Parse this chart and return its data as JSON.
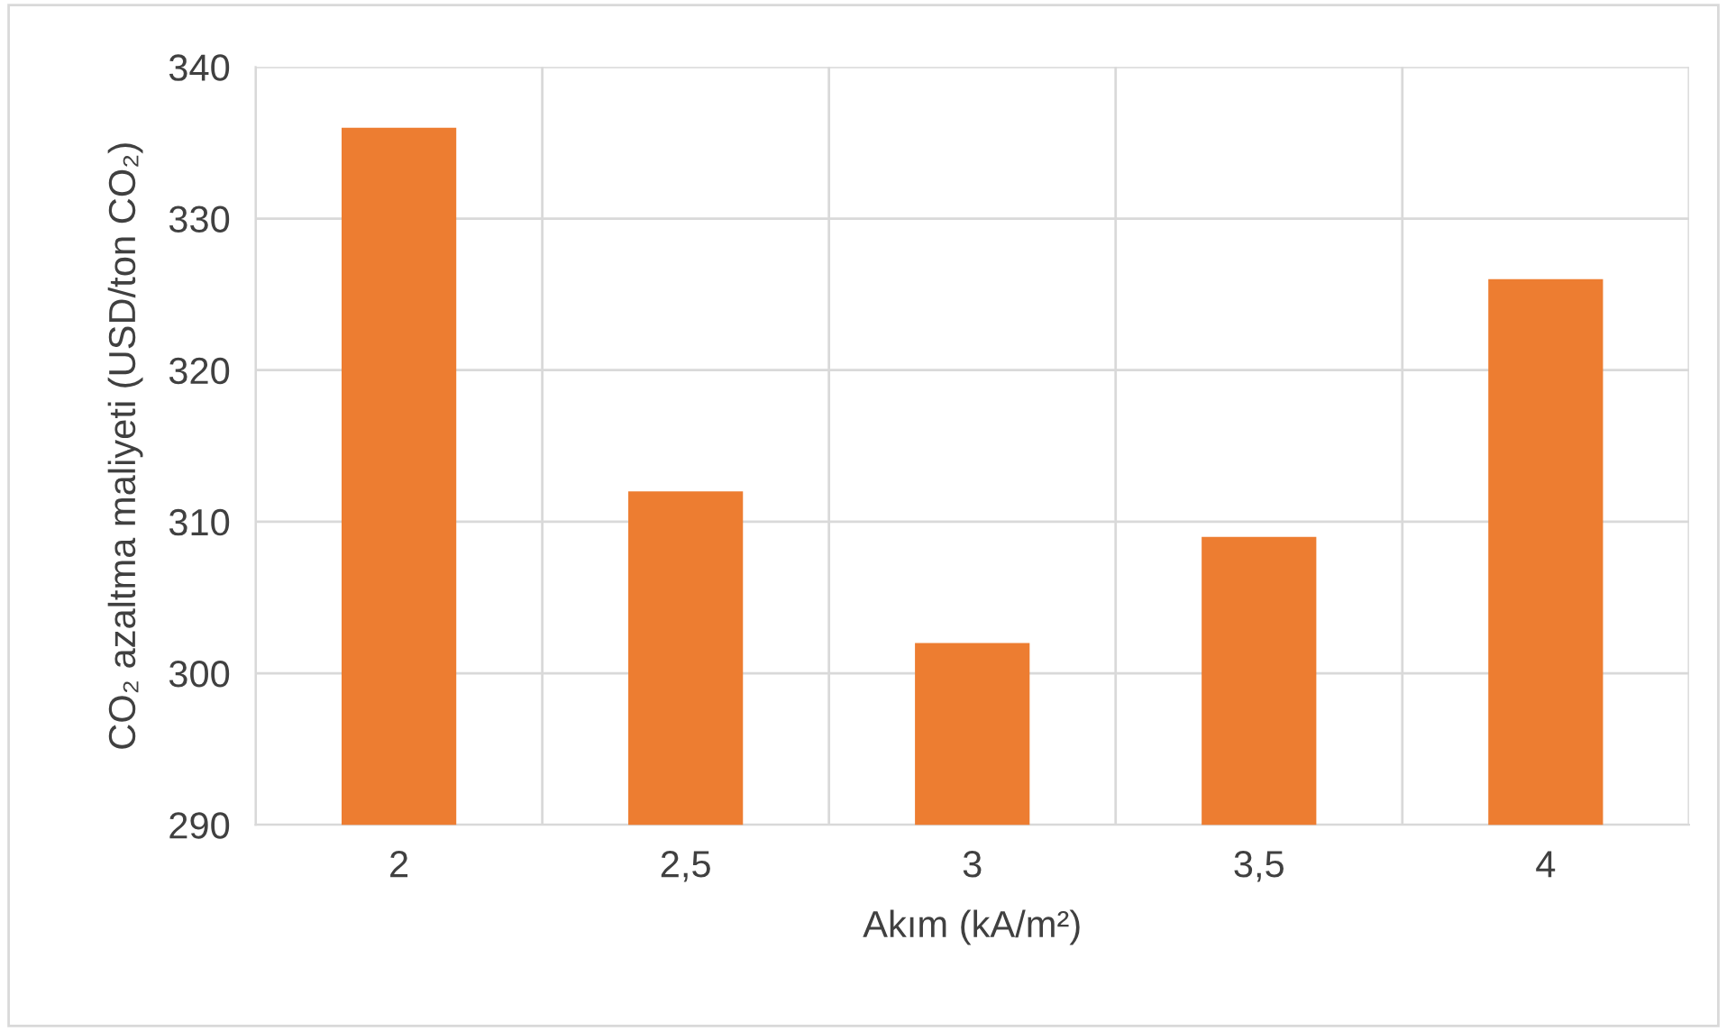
{
  "chart_data": {
    "type": "bar",
    "xlabel": "Akım (kA/m²)",
    "ylabel": "CO₂ azaltma maliyeti (USD/ton CO₂)",
    "categories": [
      "2",
      "2,5",
      "3",
      "3,5",
      "4"
    ],
    "values": [
      336,
      312,
      302,
      309,
      326
    ],
    "color": "#ed7d31",
    "ylim": [
      290,
      340
    ],
    "yticks": [
      290,
      300,
      310,
      320,
      330,
      340
    ],
    "grid": true
  }
}
